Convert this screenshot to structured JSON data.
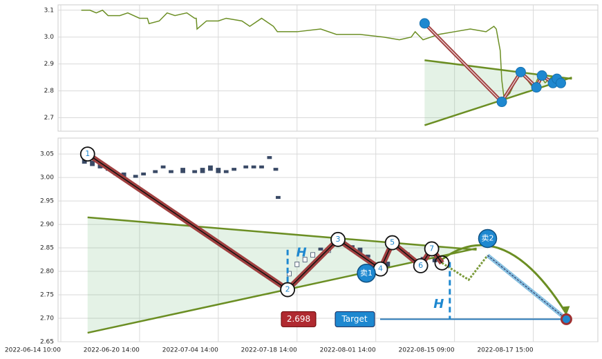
{
  "chart_data": [
    {
      "type": "line",
      "xlim": [
        -0.35,
        68.2
      ],
      "ylim": [
        2.65,
        3.12
      ],
      "yticks": [
        2.7,
        2.8,
        2.9,
        {
          "value": 3.0,
          "label": "3.0"
        },
        3.1
      ],
      "series": [
        {
          "color": "#6b8e23",
          "x": [
            2.6,
            3.7,
            4.5,
            5.3,
            6.0,
            7.5,
            8.5,
            10,
            11,
            11.2,
            12.5,
            13.5,
            14.5,
            16,
            17,
            17.2,
            17.3,
            18.5,
            20,
            21,
            23,
            24,
            25.5,
            27,
            27.5,
            30,
            33,
            35,
            38,
            41,
            43,
            44.5,
            45,
            46,
            48,
            50,
            52,
            54,
            55,
            55.3,
            55.8,
            56,
            56.3,
            57,
            58.3,
            59,
            60,
            60.8,
            61.5,
            62.3,
            63
          ],
          "values": [
            3.1,
            3.1,
            3.09,
            3.1,
            3.08,
            3.08,
            3.09,
            3.07,
            3.07,
            3.05,
            3.06,
            3.09,
            3.08,
            3.09,
            3.07,
            3.07,
            3.03,
            3.06,
            3.06,
            3.07,
            3.06,
            3.04,
            3.07,
            3.04,
            3.02,
            3.02,
            3.03,
            3.01,
            3.01,
            3.0,
            2.99,
            3.0,
            3.02,
            2.99,
            3.01,
            3.02,
            3.03,
            3.02,
            3.04,
            3.03,
            2.95,
            2.84,
            2.77,
            2.79,
            2.87,
            2.85,
            2.81,
            2.86,
            2.83,
            2.85,
            2.82
          ]
        }
      ],
      "upper_line": {
        "x": [
          46.2,
          64.9
        ],
        "values": [
          2.914,
          2.845
        ]
      },
      "lower_line": {
        "x": [
          46.2,
          64.9
        ],
        "values": [
          2.672,
          2.85
        ]
      },
      "zigzag": {
        "x": [
          46.2,
          56.0,
          58.4,
          60.4,
          61.1,
          62.5,
          63.0,
          63.5
        ],
        "values": [
          3.051,
          2.759,
          2.87,
          2.813,
          2.857,
          2.829,
          2.845,
          2.829
        ]
      }
    },
    {
      "type": "candlestick",
      "xlim": [
        -0.35,
        68.2
      ],
      "ylim": [
        2.65,
        3.084
      ],
      "xticks": [
        {
          "value": 0,
          "label": "2022-06-14 10:00"
        },
        {
          "value": 10,
          "label": "2022-06-20 14:00"
        },
        {
          "value": 20,
          "label": "2022-07-04 14:00"
        },
        {
          "value": 30,
          "label": "2022-07-18 14:00"
        },
        {
          "value": 40,
          "label": "2022-08-01 14:00"
        },
        {
          "value": 50,
          "label": "2022-08-15 09:00"
        },
        {
          "value": 60,
          "label": "2022-08-17 15:00"
        }
      ],
      "yticks": [
        2.65,
        {
          "value": 2.7,
          "label": "2.70"
        },
        2.75,
        {
          "value": 2.8,
          "label": "2.80"
        },
        2.85,
        {
          "value": 2.9,
          "label": "2.90"
        },
        2.95,
        {
          "value": 3.0,
          "label": "3.00"
        },
        3.05
      ],
      "candles": {
        "x": [
          3.0,
          4.0,
          5.0,
          6.0,
          7.0,
          8.0,
          9.5,
          10.5,
          12,
          13,
          14,
          15.5,
          17,
          18,
          19,
          20,
          21,
          22,
          23.5,
          24.5,
          25.5,
          26.5,
          27.3,
          27.6,
          29,
          30,
          31,
          32,
          33,
          34,
          36,
          37,
          38,
          39,
          41.5,
          43,
          44,
          46,
          47.5
        ],
        "open": [
          3.04,
          3.035,
          3.03,
          3.02,
          3.01,
          3.01,
          3.005,
          3.01,
          3.015,
          3.025,
          3.015,
          3.02,
          3.015,
          3.02,
          3.025,
          3.02,
          3.015,
          3.02,
          3.025,
          3.025,
          3.025,
          3.045,
          3.02,
          2.96,
          2.79,
          2.81,
          2.82,
          2.83,
          2.85,
          2.84,
          2.86,
          2.855,
          2.85,
          2.835,
          2.82,
          2.85,
          2.84,
          2.83,
          2.83
        ],
        "close": [
          3.03,
          3.025,
          3.02,
          3.015,
          3.005,
          3.0,
          3.0,
          3.005,
          3.01,
          3.02,
          3.01,
          3.01,
          3.01,
          3.01,
          3.015,
          3.01,
          3.01,
          3.015,
          3.02,
          3.02,
          3.02,
          3.04,
          3.015,
          2.955,
          2.8,
          2.82,
          2.83,
          2.84,
          2.845,
          2.845,
          2.855,
          2.85,
          2.84,
          2.83,
          2.81,
          2.845,
          2.835,
          2.825,
          2.82
        ]
      },
      "upper_line": {
        "x": [
          3.4,
          52.8
        ],
        "values": [
          2.915,
          2.846
        ]
      },
      "lower_line": {
        "x": [
          3.4,
          52.8
        ],
        "values": [
          2.669,
          2.849
        ]
      },
      "zigzag": {
        "x": [
          3.4,
          28.8,
          35.2,
          40.6,
          42.1,
          45.7,
          47.1,
          48.4
        ],
        "values": [
          3.05,
          2.761,
          2.868,
          2.805,
          2.861,
          2.812,
          2.848,
          2.818
        ],
        "labels": [
          "1",
          "2",
          "3",
          "4",
          "5",
          "6",
          "7",
          null
        ]
      },
      "forecast": {
        "x": [
          51.8,
          54.2
        ],
        "values": [
          2.782,
          2.834
        ]
      },
      "target": {
        "value": 2.698,
        "text": "Target",
        "x": 64.2
      },
      "sells": [
        {
          "label": "卖1",
          "x": 38.8,
          "value": 2.796
        },
        {
          "label": "卖2",
          "x": 54.2,
          "value": 2.87
        }
      ],
      "heights": [
        {
          "label": "H",
          "x": 28.8,
          "from": 2.761,
          "to": 2.846
        },
        {
          "label": "H",
          "x": 49.4,
          "from": 2.698,
          "to": 2.82
        }
      ]
    }
  ]
}
